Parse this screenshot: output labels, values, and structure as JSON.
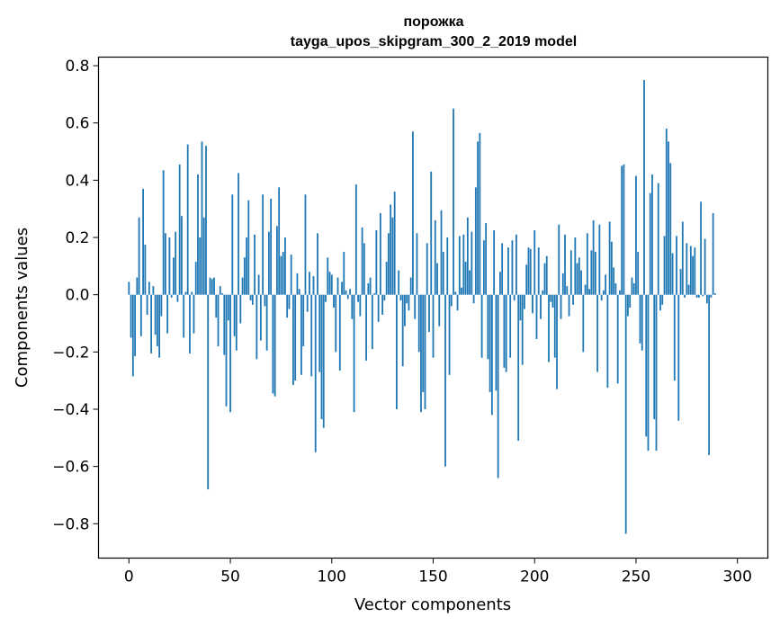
{
  "chart_data": {
    "type": "bar",
    "title_line1": "порожка",
    "title_line2": "tayga_upos_skipgram_300_2_2019 model",
    "xlabel": "Vector components",
    "ylabel": "Components values",
    "xlim": [
      -15,
      315
    ],
    "ylim": [
      -0.92,
      0.83
    ],
    "xticks": [
      0,
      50,
      100,
      150,
      200,
      250,
      300
    ],
    "xtick_labels": [
      "0",
      "50",
      "100",
      "150",
      "200",
      "250",
      "300"
    ],
    "yticks": [
      0.8,
      0.6,
      0.4,
      0.2,
      0.0,
      -0.2,
      -0.4,
      -0.6,
      -0.8
    ],
    "ytick_labels": [
      "0.8",
      "0.6",
      "0.4",
      "0.2",
      "0.0",
      "−0.2",
      "−0.4",
      "−0.6",
      "−0.8"
    ],
    "bar_color": "#1f77b4",
    "values": [
      0.045,
      -0.15,
      -0.285,
      -0.215,
      0.06,
      0.27,
      -0.145,
      0.37,
      0.175,
      -0.07,
      0.045,
      -0.205,
      0.03,
      -0.14,
      -0.18,
      -0.22,
      -0.075,
      0.435,
      0.215,
      -0.135,
      0.2,
      -0.01,
      0.13,
      0.22,
      -0.025,
      0.455,
      0.275,
      -0.15,
      0.01,
      0.525,
      -0.205,
      0.01,
      -0.135,
      0.115,
      0.42,
      0.2,
      0.535,
      0.27,
      0.52,
      -0.68,
      0.06,
      0.055,
      0.06,
      -0.08,
      -0.18,
      0.03,
      0.005,
      -0.21,
      -0.39,
      -0.09,
      -0.41,
      0.35,
      -0.145,
      -0.195,
      0.425,
      -0.1,
      0.06,
      0.13,
      0.2,
      0.33,
      -0.02,
      -0.035,
      0.21,
      -0.225,
      0.07,
      -0.16,
      0.35,
      -0.04,
      -0.195,
      0.22,
      0.335,
      -0.345,
      -0.355,
      0.24,
      0.375,
      0.135,
      0.15,
      0.2,
      -0.08,
      -0.05,
      0.14,
      -0.315,
      -0.3,
      0.075,
      0.02,
      -0.28,
      -0.18,
      0.35,
      -0.06,
      0.08,
      -0.285,
      0.065,
      -0.55,
      0.215,
      -0.27,
      -0.435,
      -0.465,
      -0.025,
      0.13,
      0.08,
      0.07,
      -0.045,
      -0.2,
      0.06,
      -0.265,
      0.045,
      0.15,
      0.015,
      -0.015,
      0.02,
      -0.085,
      -0.41,
      0.385,
      -0.025,
      -0.075,
      0.235,
      0.18,
      -0.23,
      0.04,
      0.06,
      -0.19,
      0.005,
      0.225,
      -0.095,
      0.285,
      -0.07,
      -0.02,
      0.115,
      0.215,
      0.315,
      0.27,
      0.36,
      -0.4,
      0.085,
      -0.02,
      -0.25,
      -0.11,
      -0.03,
      -0.055,
      0.06,
      0.57,
      -0.085,
      0.215,
      -0.2,
      -0.41,
      -0.34,
      -0.4,
      0.18,
      -0.13,
      0.43,
      -0.22,
      0.26,
      0.11,
      -0.11,
      0.295,
      0.15,
      -0.6,
      0.2,
      -0.28,
      -0.04,
      0.65,
      0.01,
      -0.055,
      0.205,
      0.025,
      0.21,
      0.115,
      0.27,
      0.085,
      0.22,
      -0.03,
      0.375,
      0.535,
      0.565,
      -0.22,
      0.19,
      0.25,
      -0.225,
      -0.34,
      -0.42,
      0.225,
      -0.335,
      -0.64,
      0.08,
      0.18,
      -0.255,
      -0.27,
      0.165,
      -0.22,
      0.19,
      -0.02,
      0.21,
      -0.51,
      -0.09,
      -0.245,
      -0.05,
      0.105,
      0.165,
      0.16,
      -0.065,
      0.225,
      -0.155,
      0.165,
      -0.085,
      0.015,
      0.11,
      0.135,
      -0.235,
      -0.025,
      -0.045,
      -0.22,
      -0.33,
      0.245,
      -0.085,
      0.075,
      0.21,
      0.03,
      -0.075,
      0.155,
      -0.035,
      0.2,
      0.11,
      0.13,
      0.085,
      -0.2,
      0.035,
      0.215,
      0.02,
      0.155,
      0.26,
      0.15,
      -0.27,
      0.245,
      -0.02,
      0.015,
      0.07,
      -0.325,
      0.255,
      0.185,
      0.095,
      0.04,
      -0.31,
      0.015,
      0.45,
      0.455,
      -0.835,
      -0.075,
      -0.045,
      0.06,
      0.04,
      0.415,
      0.15,
      -0.17,
      -0.195,
      0.75,
      -0.495,
      -0.545,
      0.355,
      0.42,
      -0.435,
      -0.545,
      0.39,
      -0.055,
      -0.035,
      0.205,
      0.58,
      0.535,
      0.46,
      0.145,
      -0.3,
      0.205,
      -0.44,
      0.09,
      0.255,
      -0.01,
      0.18,
      0.035,
      0.17,
      0.135,
      0.165,
      -0.01,
      -0.01,
      0.325,
      -0.005,
      0.195,
      -0.03,
      -0.56,
      -0.01,
      0.285,
      0.005
    ]
  }
}
